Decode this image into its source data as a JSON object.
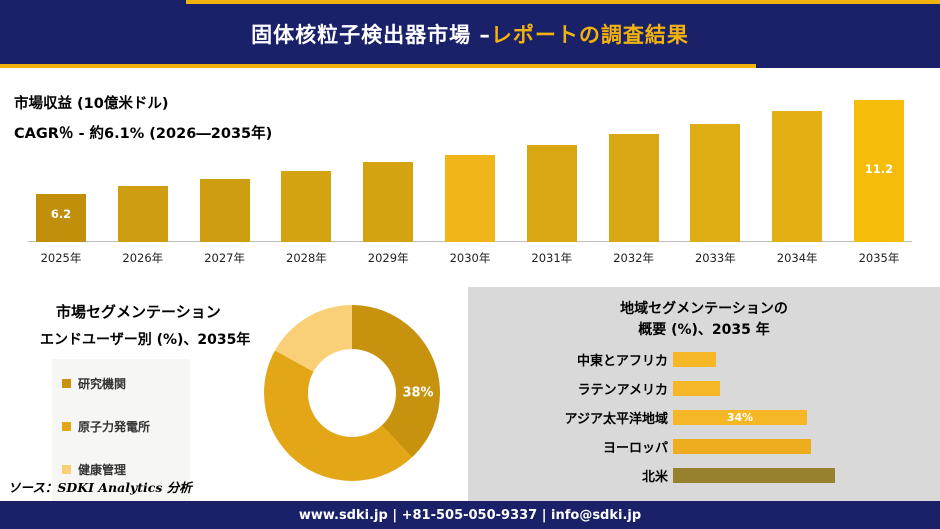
{
  "theme": {
    "navy": "#1a2168",
    "gold": "#f2b20d",
    "panel_gray": "#d9d9d9"
  },
  "header": {
    "title_main": "固体核粒子検出器市場 –",
    "title_accent": "レポートの調査結果"
  },
  "revenue_section": {
    "metric_label": "市場収益 (10億米ドル)",
    "cagr_label": "CAGR％ - 約6.1% (2026―2035年)"
  },
  "chart_data": [
    {
      "id": "revenue_bar",
      "type": "bar",
      "title": "市場収益 (10億米ドル)",
      "xlabel": "",
      "ylabel": "10億米ドル",
      "categories": [
        "2025年",
        "2026年",
        "2027年",
        "2028年",
        "2029年",
        "2030年",
        "2031年",
        "2032年",
        "2033年",
        "2034年",
        "2035年"
      ],
      "values": [
        6.2,
        6.6,
        7.0,
        7.4,
        7.9,
        8.3,
        8.8,
        9.4,
        9.9,
        10.6,
        11.2
      ],
      "value_labels": {
        "first": "6.2",
        "last": "11.2"
      },
      "bar_colors": [
        "#c28f0a",
        "#cf9d10",
        "#cf9d10",
        "#d4a312",
        "#d4a312",
        "#f0b518",
        "#d9a712",
        "#d9a712",
        "#deac13",
        "#e2b013",
        "#f5bd0a"
      ],
      "annotation": "CAGR％ - 約6.1% (2026―2035年)"
    },
    {
      "id": "enduser_donut",
      "type": "pie",
      "title": "市場セグメンテーション エンドユーザー別 (%)、2035年",
      "categories": [
        "研究機関",
        "原子力発電所",
        "健康管理"
      ],
      "values": [
        38,
        45,
        17
      ],
      "colors": [
        "#c7920d",
        "#e2a616",
        "#f9d077"
      ],
      "shown_label": "38%"
    },
    {
      "id": "regional_hbar",
      "type": "bar",
      "orientation": "horizontal",
      "title": "地域セグメンテーションの概要 (%)、2035 年",
      "categories": [
        "中東とアフリカ",
        "ラテンアメリカ",
        "アジア太平洋地域",
        "ヨーロッパ",
        "北米"
      ],
      "values": [
        11,
        12,
        34,
        35,
        41
      ],
      "colors": [
        "#f5b725",
        "#f5b725",
        "#f5b725",
        "#eead1e",
        "#97812c"
      ],
      "labels_shown": [
        {
          "index": 2,
          "text": "34%"
        }
      ]
    }
  ],
  "segmentation_panel": {
    "title_line1": "市場セグメンテーション",
    "title_line2": "エンドユーザー別 (%)、2035年",
    "legend": [
      {
        "label": "研究機関",
        "color": "#c7920d"
      },
      {
        "label": "原子力発電所",
        "color": "#e2a616"
      },
      {
        "label": "健康管理",
        "color": "#f9d077"
      }
    ],
    "donut_callout": "38%"
  },
  "regional_panel": {
    "title_line1": "地域セグメンテーションの",
    "title_line2": "概要 (%)、2035 年"
  },
  "source_note": "ソース：SDKI Analytics 分析",
  "footer": {
    "text": "www.sdki.jp | +81-505-050-9337 | info@sdki.jp"
  }
}
